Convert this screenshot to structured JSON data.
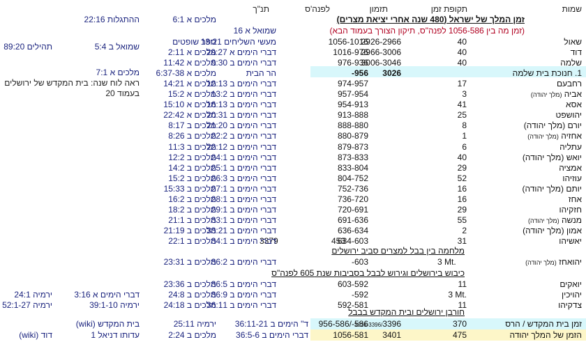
{
  "headers": {
    "names": "שמות",
    "period": "תקופת זמן",
    "timing": "תזמון",
    "bce": "לפנה'ס",
    "tanakh": "תנ\"ך"
  },
  "section_title": "זמן המלך של ישראל (480 שנה אחרי יציאת מצרים)",
  "red_note": "(זמן מה בין 1056-586 לפנה\"ס, תיקון הצורך בעמוד הבא)",
  "top_refs": {
    "kings_6_1": "מלכים א 6:1",
    "revelation": "ההתגלות 22:16",
    "samuel_16": "שמואל א 16",
    "judges_book": "ספר שופטים",
    "samuel_b_5_4": "שמואל ב 5:4",
    "psalms": "תהילים 89:20",
    "temple_mount": "הר הבית",
    "kings_7_1": "מלכים א 7:1",
    "see_calendar_1": "ראה לוח שנה: בית המקדש של ירושלים",
    "see_calendar_2": "בעמוד 20"
  },
  "rows": [
    {
      "name": "שאול",
      "sub": "",
      "years": "40",
      "timing": "2926-2966",
      "bce": "1056-1016",
      "ref1": "מעשי השליחים 13:21",
      "ref2": "ספר שופטים"
    },
    {
      "name": "דוד",
      "sub": "",
      "years": "40",
      "timing": "2966-3006",
      "bce": "1016-976",
      "ref1": "דברי הימים א 29:27",
      "ref2": "מלכים א 2:11"
    },
    {
      "name": "שלמה",
      "sub": "",
      "years": "40",
      "timing": "3006-3046",
      "bce": "976-936",
      "ref1": "דברי הימים ב 9:30",
      "ref2": "מלכים א 11:42"
    },
    {
      "name": "1. חנוכת בית שלמה",
      "sub": "",
      "years": "",
      "timing": "3026",
      "bce": "-956",
      "ref1": "הר הבית",
      "ref2": "מלכים א 6:37-38"
    },
    {
      "name": "רחבעם",
      "sub": "",
      "years": "17",
      "timing": "",
      "bce": "974-957",
      "ref1": "דברי הימים ב 12:13",
      "ref2": "מלכים א 14:21"
    },
    {
      "name": "אביה",
      "sub": "(מלך יהודה)",
      "years": "3",
      "timing": "",
      "bce": "957-954",
      "ref1": "דברי הימים ב 13:2",
      "ref2": "מלכים א 15:2"
    },
    {
      "name": "אסא",
      "sub": "",
      "years": "41",
      "timing": "",
      "bce": "954-913",
      "ref1": "דברי הימים ב 16:13",
      "ref2": "מלכים א 15:10"
    },
    {
      "name": "יהושפט",
      "sub": "",
      "years": "25",
      "timing": "",
      "bce": "913-888",
      "ref1": "דברי הימים ב 20:31",
      "ref2": "מלכים א 22:42"
    },
    {
      "name": "יורם (מלך יהודה)",
      "sub": "",
      "years": "8",
      "timing": "",
      "bce": "888-880",
      "ref1": "דברי הימים ב 21:20",
      "ref2": "מלכים ב 8:17"
    },
    {
      "name": "אחזיה",
      "sub": "(מלך יהודה)",
      "years": "1",
      "timing": "",
      "bce": "880-879",
      "ref1": "דברי הימים ב 22:2",
      "ref2": "מלכים ב 8:26"
    },
    {
      "name": "עתליה",
      "sub": "",
      "years": "6",
      "timing": "",
      "bce": "879-873",
      "ref1": "דברי הימים ב 22:12",
      "ref2": "מלכים ב 11:3"
    },
    {
      "name": "יואש (מלך יהודה)",
      "sub": "",
      "years": "40",
      "timing": "",
      "bce": "873-833",
      "ref1": "דברי הימים ב 24:1",
      "ref2": "מלכים ב 12:2"
    },
    {
      "name": "אמציה",
      "sub": "",
      "years": "29",
      "timing": "",
      "bce": "833-804",
      "ref1": "דברי הימים ב 25:1",
      "ref2": "מלכים ב 14:2"
    },
    {
      "name": "עוזיהו",
      "sub": "",
      "years": "52",
      "timing": "",
      "bce": "804-752",
      "ref1": "דברי הימים ב 26:3",
      "ref2": "מלכים ב 15:2"
    },
    {
      "name": "יותם (מלך יהודה)",
      "sub": "",
      "years": "16",
      "timing": "",
      "bce": "752-736",
      "ref1": "דברי הימים ב 27:1",
      "ref2": "מלכים ב 15:33"
    },
    {
      "name": "אחז",
      "sub": "",
      "years": "16",
      "timing": "",
      "bce": "736-720",
      "ref1": "דברי הימים ב 28:1",
      "ref2": "מלכים ב 16:2"
    },
    {
      "name": "חזקיהו",
      "sub": "",
      "years": "29",
      "timing": "",
      "bce": "720-691",
      "ref1": "דברי הימים ב 29:1",
      "ref2": "מלכים ב 18:2"
    },
    {
      "name": "מנשה",
      "sub": "(מלך יהודה)",
      "years": "55",
      "timing": "",
      "bce": "691-636",
      "ref1": "דברי הימים ב 33:1",
      "ref2": "מלכים ב 21:1"
    },
    {
      "name": "אמון (מלך יהודה)",
      "sub": "",
      "years": "2",
      "timing": "",
      "bce": "636-634",
      "ref1": "דברי הימים ב 33:21",
      "ref2": "מלכים ב 21:19"
    },
    {
      "name": "יאשיהו",
      "sub": "",
      "years": "31",
      "timing": "453",
      "extra": "3379",
      "bce": "634-603",
      "ref1": "דברי הימים ב 34:1",
      "ref2": "מלכים ב 22:1"
    }
  ],
  "war_title": "מלחמה בין בבל למצרים סביב ירושלים",
  "jehoahaz": {
    "name": "יהואחז",
    "sub": "(מלך יהודה)",
    "years": "3 Mt.",
    "bce": "-603",
    "ref1": "דברי הימים ב 36:2",
    "ref2": "מלכים ב 23:31"
  },
  "conquest_title": "כיבוש בירושלים וגירוש לבבל בסביבות שנת 605 לפנה\"ס",
  "late_rows": [
    {
      "name": "יואקים",
      "years": "11",
      "bce": "603-592",
      "ref1": "דברי הימים ב 36:5",
      "ref2": "מלכים ב 23:36",
      "ref3": "",
      "ref4": ""
    },
    {
      "name": "יהויכין",
      "years": "3 Mt.",
      "bce": "-592",
      "ref1": "דברי הימים ב 36:9",
      "ref2": "מלכים ב 24:8",
      "ref3": "דברי הימים א 3:16",
      "ref4": "ירמיה 24:1"
    },
    {
      "name": "צדקיהו",
      "years": "11",
      "bce": "592-581",
      "ref1": "דברי הימים ב 36:11",
      "ref2": "מלכים ב 24:18",
      "ref3": "ירמיה 39:1-10",
      "ref4": "ירמיה 52:1-27"
    }
  ],
  "destruction_title": "חורבן ירושלים ובית המקדש בבבל",
  "summary": [
    {
      "name": "זמן בית המקדש / הרס",
      "years": "370",
      "timing_small": "3026-3396/",
      "timing": "3396",
      "bce": "956-586/-586",
      "ref1": "ד\" הימים ב 36:11-21",
      "ref2": "ירמיה 25:11",
      "ref3": "בית המקדש (wiki)",
      "color": "#d8f7fb"
    },
    {
      "name": "הזמן של המלך יהודה",
      "years": "475",
      "timing_small": "",
      "timing": "3401",
      "bce": "1056-581",
      "ref1": "דברי הימים ב 36:5-6",
      "ref2": "מלכים ב 2:24",
      "ref3": "עדותו דניאל 1",
      "ref4": "דוד (wiki)",
      "color": "#fdf6c8"
    }
  ]
}
